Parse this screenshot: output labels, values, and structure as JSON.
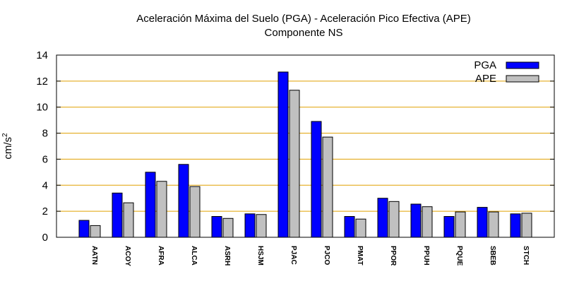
{
  "chart_data": {
    "type": "bar",
    "title": "Aceleración Máxima del Suelo (PGA) -  Aceleración Pico Efectiva (APE)",
    "subtitle": "Componente NS",
    "xlabel": "",
    "ylabel": "cm/s",
    "ylabel_superscript": "2",
    "ylim": [
      0,
      14
    ],
    "yticks": [
      "0",
      "2",
      "4",
      "6",
      "8",
      "10",
      "12",
      "14"
    ],
    "grid": "horizontal",
    "legend_position": "top-right",
    "categories": [
      "AATN",
      "ACOY",
      "AFRA",
      "ALCA",
      "ASRH",
      "HSJM",
      "PJAC",
      "PJCO",
      "PMAT",
      "PPOR",
      "PPUH",
      "PQUE",
      "SBEB",
      "STCH"
    ],
    "series": [
      {
        "name": "PGA",
        "color": "#0000ff",
        "values": [
          1.3,
          3.4,
          5.0,
          5.6,
          1.6,
          1.8,
          12.7,
          8.9,
          1.6,
          3.0,
          2.55,
          1.6,
          2.3,
          1.8
        ]
      },
      {
        "name": "APE",
        "color": "#c0c0c0",
        "values": [
          0.9,
          2.65,
          4.3,
          3.9,
          1.45,
          1.75,
          11.3,
          7.7,
          1.4,
          2.75,
          2.35,
          1.95,
          1.95,
          1.85
        ]
      }
    ],
    "grid_color": "#e0a000"
  }
}
